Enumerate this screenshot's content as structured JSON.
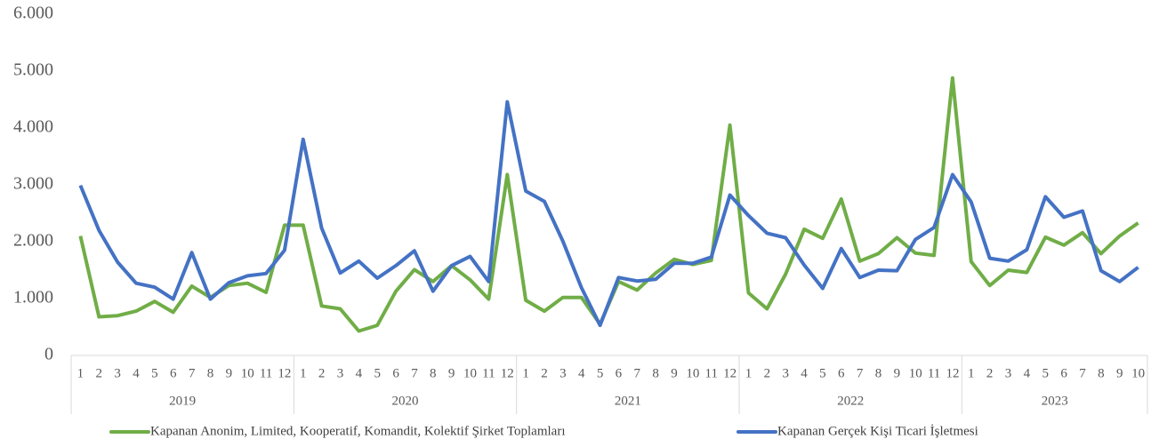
{
  "chart_data": {
    "type": "line",
    "groups": [
      {
        "label": "2019",
        "categories": [
          "1",
          "2",
          "3",
          "4",
          "5",
          "6",
          "7",
          "8",
          "9",
          "10",
          "11",
          "12"
        ]
      },
      {
        "label": "2020",
        "categories": [
          "1",
          "2",
          "3",
          "4",
          "5",
          "6",
          "7",
          "8",
          "9",
          "10",
          "11",
          "12"
        ]
      },
      {
        "label": "2021",
        "categories": [
          "1",
          "2",
          "3",
          "4",
          "5",
          "6",
          "7",
          "8",
          "9",
          "10",
          "11",
          "12"
        ]
      },
      {
        "label": "2022",
        "categories": [
          "1",
          "2",
          "3",
          "4",
          "5",
          "6",
          "7",
          "8",
          "9",
          "10",
          "11",
          "12"
        ]
      },
      {
        "label": "2023",
        "categories": [
          "1",
          "2",
          "3",
          "4",
          "5",
          "6",
          "7",
          "8",
          "9",
          "10"
        ]
      }
    ],
    "series": [
      {
        "name": "Kapanan Anonim, Limited, Kooperatif, Komandit, Kolektif Şirket Toplamları",
        "color": "#70ad47",
        "values": [
          2100,
          680,
          700,
          780,
          950,
          760,
          1220,
          1020,
          1230,
          1270,
          1110,
          2290,
          2290,
          870,
          820,
          430,
          530,
          1130,
          1510,
          1300,
          1580,
          1330,
          990,
          3180,
          970,
          780,
          1020,
          1020,
          550,
          1300,
          1150,
          1450,
          1690,
          1600,
          1670,
          4050,
          1100,
          820,
          1430,
          2220,
          2060,
          2750,
          1660,
          1790,
          2070,
          1800,
          1760,
          4880,
          1650,
          1230,
          1500,
          1460,
          2080,
          1940,
          2160,
          1790,
          2100,
          2330
        ]
      },
      {
        "name": "Kapanan Gerçek Kişi Ticari İşletmesi",
        "color": "#4472c4",
        "values": [
          2990,
          2200,
          1640,
          1270,
          1200,
          990,
          1810,
          990,
          1280,
          1400,
          1440,
          1850,
          3800,
          2240,
          1450,
          1660,
          1360,
          1580,
          1840,
          1130,
          1580,
          1740,
          1300,
          4460,
          2890,
          2710,
          2010,
          1190,
          530,
          1370,
          1310,
          1340,
          1620,
          1620,
          1730,
          2820,
          2460,
          2150,
          2070,
          1590,
          1180,
          1880,
          1370,
          1500,
          1490,
          2040,
          2250,
          3180,
          2700,
          1710,
          1660,
          1860,
          2790,
          2430,
          2540,
          1490,
          1300,
          1550
        ]
      }
    ],
    "ylim": [
      0,
      6000
    ],
    "yticks": [
      0,
      {
        "value": 1000,
        "label": "1.000"
      },
      {
        "value": 2000,
        "label": "2.000"
      },
      {
        "value": 3000,
        "label": "3.000"
      },
      {
        "value": 4000,
        "label": "4.000"
      },
      {
        "value": 5000,
        "label": "5.000"
      },
      {
        "value": 6000,
        "label": "6.000"
      }
    ],
    "grid": false,
    "legend": "bottom"
  }
}
